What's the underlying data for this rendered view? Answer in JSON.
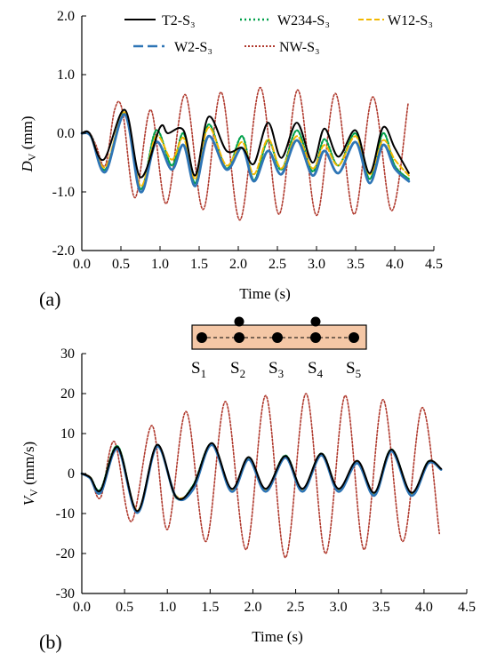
{
  "colors": {
    "T2-S3": "#000000",
    "W2-S3": "#2e75b6",
    "W234-S3": "#00a04a",
    "W12-S3": "#f2b800",
    "NW-S3": "#b03a2e",
    "beam_fill": "#f4c7a6"
  },
  "legend": [
    {
      "name": "T2-S₃",
      "style": "solid"
    },
    {
      "name": "W234-S₃",
      "style": "dotted"
    },
    {
      "name": "W12-S₃",
      "style": "dashed"
    },
    {
      "name": "W2-S₃",
      "style": "longdash"
    },
    {
      "name": "NW-S₃",
      "style": "dotted"
    }
  ],
  "schematic": {
    "sensor_labels": [
      "S",
      "S",
      "S",
      "S",
      "S"
    ],
    "sensor_subs": [
      "1",
      "2",
      "3",
      "4",
      "5"
    ]
  },
  "chart_data": [
    {
      "type": "line",
      "panel_label": "(a)",
      "xlabel": "Time (s)",
      "ylabel_main": "D",
      "ylabel_sub": "V",
      "ylabel_unit": " (mm)",
      "xlim": [
        0,
        4.5
      ],
      "ylim": [
        -2.0,
        2.0
      ],
      "xticks": [
        "0.0",
        "0.5",
        "1.0",
        "1.5",
        "2.0",
        "2.5",
        "3.0",
        "3.5",
        "4.0",
        "4.5"
      ],
      "yticks": [
        "2.0",
        "1.0",
        "0.0",
        "-1.0",
        "-2.0"
      ],
      "series": [
        {
          "name": "NW-S₃",
          "points": [
            [
              0,
              0
            ],
            [
              0.1,
              0
            ],
            [
              0.18,
              -0.2
            ],
            [
              0.3,
              -0.55
            ],
            [
              0.42,
              0.4
            ],
            [
              0.52,
              0.38
            ],
            [
              0.68,
              -1.1
            ],
            [
              0.88,
              0.4
            ],
            [
              1.08,
              -1.2
            ],
            [
              1.32,
              0.66
            ],
            [
              1.55,
              -1.3
            ],
            [
              1.78,
              0.7
            ],
            [
              2.02,
              -1.48
            ],
            [
              2.28,
              0.78
            ],
            [
              2.52,
              -1.38
            ],
            [
              2.76,
              0.74
            ],
            [
              3.0,
              -1.4
            ],
            [
              3.24,
              0.68
            ],
            [
              3.48,
              -1.38
            ],
            [
              3.72,
              0.62
            ],
            [
              3.96,
              -1.32
            ],
            [
              4.17,
              0.5
            ]
          ]
        },
        {
          "name": "W234-S₃",
          "points": [
            [
              0,
              0
            ],
            [
              0.12,
              -0.05
            ],
            [
              0.3,
              -0.62
            ],
            [
              0.55,
              0.35
            ],
            [
              0.75,
              -0.95
            ],
            [
              0.95,
              0.05
            ],
            [
              1.15,
              -0.55
            ],
            [
              1.3,
              0.0
            ],
            [
              1.45,
              -0.85
            ],
            [
              1.62,
              0.15
            ],
            [
              1.85,
              -0.6
            ],
            [
              2.05,
              -0.05
            ],
            [
              2.2,
              -0.8
            ],
            [
              2.38,
              -0.12
            ],
            [
              2.55,
              -0.62
            ],
            [
              2.75,
              0.05
            ],
            [
              2.95,
              -0.65
            ],
            [
              3.1,
              -0.1
            ],
            [
              3.28,
              -0.55
            ],
            [
              3.5,
              0.0
            ],
            [
              3.68,
              -0.78
            ],
            [
              3.85,
              0.0
            ],
            [
              4.0,
              -0.55
            ],
            [
              4.18,
              -0.78
            ]
          ]
        },
        {
          "name": "W12-S₃",
          "points": [
            [
              0,
              0
            ],
            [
              0.12,
              -0.05
            ],
            [
              0.3,
              -0.58
            ],
            [
              0.55,
              0.36
            ],
            [
              0.75,
              -0.9
            ],
            [
              0.95,
              -0.05
            ],
            [
              1.15,
              -0.45
            ],
            [
              1.3,
              -0.08
            ],
            [
              1.45,
              -0.78
            ],
            [
              1.62,
              0.1
            ],
            [
              1.85,
              -0.55
            ],
            [
              2.05,
              -0.15
            ],
            [
              2.2,
              -0.7
            ],
            [
              2.38,
              -0.1
            ],
            [
              2.55,
              -0.6
            ],
            [
              2.75,
              -0.05
            ],
            [
              2.95,
              -0.6
            ],
            [
              3.1,
              -0.2
            ],
            [
              3.28,
              -0.55
            ],
            [
              3.5,
              -0.05
            ],
            [
              3.68,
              -0.7
            ],
            [
              3.85,
              -0.12
            ],
            [
              4.0,
              -0.45
            ],
            [
              4.18,
              -0.72
            ]
          ]
        },
        {
          "name": "W2-S₃",
          "points": [
            [
              0,
              0
            ],
            [
              0.12,
              -0.06
            ],
            [
              0.3,
              -0.66
            ],
            [
              0.55,
              0.32
            ],
            [
              0.75,
              -1.0
            ],
            [
              0.95,
              -0.15
            ],
            [
              1.15,
              -0.62
            ],
            [
              1.3,
              -0.2
            ],
            [
              1.45,
              -0.9
            ],
            [
              1.62,
              -0.05
            ],
            [
              1.85,
              -0.62
            ],
            [
              2.05,
              -0.25
            ],
            [
              2.2,
              -0.82
            ],
            [
              2.38,
              -0.3
            ],
            [
              2.55,
              -0.7
            ],
            [
              2.75,
              -0.12
            ],
            [
              2.95,
              -0.72
            ],
            [
              3.1,
              -0.3
            ],
            [
              3.28,
              -0.68
            ],
            [
              3.5,
              -0.15
            ],
            [
              3.68,
              -0.85
            ],
            [
              3.85,
              -0.2
            ],
            [
              4.0,
              -0.6
            ],
            [
              4.18,
              -0.82
            ]
          ]
        },
        {
          "name": "T2-S₃",
          "points": [
            [
              0,
              0
            ],
            [
              0.1,
              0
            ],
            [
              0.28,
              -0.45
            ],
            [
              0.55,
              0.4
            ],
            [
              0.75,
              -0.75
            ],
            [
              1.0,
              0.1
            ],
            [
              1.1,
              0.0
            ],
            [
              1.3,
              0.05
            ],
            [
              1.45,
              -0.72
            ],
            [
              1.62,
              0.28
            ],
            [
              1.85,
              -0.3
            ],
            [
              2.05,
              -0.25
            ],
            [
              2.2,
              -0.52
            ],
            [
              2.38,
              0.18
            ],
            [
              2.55,
              -0.42
            ],
            [
              2.75,
              0.18
            ],
            [
              2.95,
              -0.5
            ],
            [
              3.1,
              0.08
            ],
            [
              3.28,
              -0.4
            ],
            [
              3.5,
              0.05
            ],
            [
              3.68,
              -0.68
            ],
            [
              3.85,
              0.1
            ],
            [
              4.0,
              -0.25
            ],
            [
              4.18,
              -0.68
            ]
          ]
        }
      ]
    },
    {
      "type": "line",
      "panel_label": "(b)",
      "xlabel": "Time (s)",
      "ylabel_main": "V",
      "ylabel_sub": "V",
      "ylabel_unit": "  (mm/s)",
      "xlim": [
        0,
        4.5
      ],
      "ylim": [
        -30,
        30
      ],
      "xticks": [
        "0.0",
        "0.5",
        "1.0",
        "1.5",
        "2.0",
        "2.5",
        "3.0",
        "3.5",
        "4.0",
        "4.5"
      ],
      "yticks": [
        "30",
        "20",
        "10",
        "0",
        "-10",
        "-20",
        "-30"
      ],
      "series": [
        {
          "name": "NW-S₃",
          "points": [
            [
              0,
              0
            ],
            [
              0.1,
              -1
            ],
            [
              0.22,
              -6
            ],
            [
              0.38,
              8
            ],
            [
              0.58,
              -12
            ],
            [
              0.82,
              12
            ],
            [
              1.0,
              -14
            ],
            [
              1.22,
              15.5
            ],
            [
              1.45,
              -17
            ],
            [
              1.68,
              18
            ],
            [
              1.92,
              -19
            ],
            [
              2.15,
              19.5
            ],
            [
              2.38,
              -21
            ],
            [
              2.62,
              20
            ],
            [
              2.85,
              -20
            ],
            [
              3.08,
              19.5
            ],
            [
              3.3,
              -19
            ],
            [
              3.52,
              18.5
            ],
            [
              3.75,
              -17
            ],
            [
              3.98,
              16.5
            ],
            [
              4.18,
              -15
            ]
          ]
        },
        {
          "name": "W234-S₃",
          "points": [
            [
              0,
              0
            ],
            [
              0.1,
              -1
            ],
            [
              0.22,
              -4
            ],
            [
              0.42,
              6.8
            ],
            [
              0.65,
              -9.5
            ],
            [
              0.88,
              7
            ],
            [
              1.1,
              -6
            ],
            [
              1.3,
              -3
            ],
            [
              1.52,
              7.5
            ],
            [
              1.75,
              -4
            ],
            [
              1.95,
              4
            ],
            [
              2.15,
              -4
            ],
            [
              2.38,
              4.5
            ],
            [
              2.58,
              -4
            ],
            [
              2.8,
              5
            ],
            [
              3.0,
              -4
            ],
            [
              3.22,
              3
            ],
            [
              3.42,
              -5
            ],
            [
              3.62,
              6
            ],
            [
              3.85,
              -5
            ],
            [
              4.05,
              3
            ],
            [
              4.2,
              1
            ]
          ]
        },
        {
          "name": "W12-S₃",
          "points": [
            [
              0,
              0
            ],
            [
              0.1,
              -1
            ],
            [
              0.22,
              -4.5
            ],
            [
              0.42,
              6.5
            ],
            [
              0.65,
              -9.3
            ],
            [
              0.88,
              6.8
            ],
            [
              1.1,
              -5.5
            ],
            [
              1.3,
              -3.5
            ],
            [
              1.52,
              7.2
            ],
            [
              1.75,
              -4.2
            ],
            [
              1.95,
              3.6
            ],
            [
              2.15,
              -4.2
            ],
            [
              2.38,
              4.2
            ],
            [
              2.58,
              -4.2
            ],
            [
              2.8,
              4.8
            ],
            [
              3.0,
              -4.2
            ],
            [
              3.22,
              2.8
            ],
            [
              3.42,
              -5.2
            ],
            [
              3.62,
              5.8
            ],
            [
              3.85,
              -5.2
            ],
            [
              4.05,
              2.8
            ],
            [
              4.2,
              1
            ]
          ]
        },
        {
          "name": "W2-S₃",
          "points": [
            [
              0,
              0
            ],
            [
              0.1,
              -1.2
            ],
            [
              0.22,
              -4.8
            ],
            [
              0.42,
              6.2
            ],
            [
              0.65,
              -9.8
            ],
            [
              0.88,
              6.8
            ],
            [
              1.1,
              -5.8
            ],
            [
              1.3,
              -4
            ],
            [
              1.52,
              7.2
            ],
            [
              1.75,
              -4.5
            ],
            [
              1.95,
              3.5
            ],
            [
              2.15,
              -4.5
            ],
            [
              2.38,
              4
            ],
            [
              2.58,
              -4.5
            ],
            [
              2.8,
              4.6
            ],
            [
              3.0,
              -4.5
            ],
            [
              3.22,
              2.6
            ],
            [
              3.42,
              -5.5
            ],
            [
              3.62,
              5.6
            ],
            [
              3.85,
              -5.5
            ],
            [
              4.05,
              2.6
            ],
            [
              4.2,
              1
            ]
          ]
        },
        {
          "name": "T2-S₃",
          "points": [
            [
              0,
              0
            ],
            [
              0.1,
              -1
            ],
            [
              0.22,
              -4.2
            ],
            [
              0.42,
              6.6
            ],
            [
              0.65,
              -9.4
            ],
            [
              0.88,
              7.2
            ],
            [
              1.1,
              -5.8
            ],
            [
              1.3,
              -3.2
            ],
            [
              1.52,
              7.6
            ],
            [
              1.75,
              -3.8
            ],
            [
              1.95,
              4.1
            ],
            [
              2.15,
              -3.8
            ],
            [
              2.38,
              4.4
            ],
            [
              2.58,
              -3.8
            ],
            [
              2.8,
              5
            ],
            [
              3.0,
              -3.8
            ],
            [
              3.22,
              3.2
            ],
            [
              3.42,
              -4.8
            ],
            [
              3.62,
              6
            ],
            [
              3.85,
              -4.8
            ],
            [
              4.05,
              3
            ],
            [
              4.2,
              1.2
            ]
          ]
        }
      ]
    }
  ]
}
